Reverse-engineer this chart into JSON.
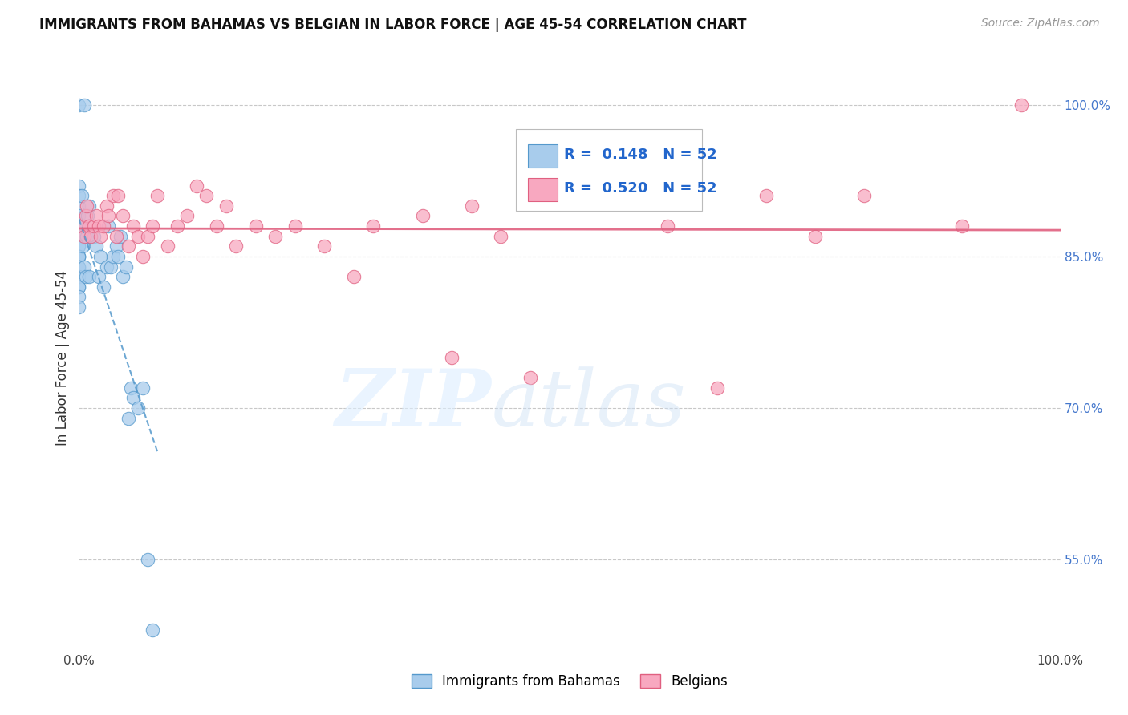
{
  "title": "IMMIGRANTS FROM BAHAMAS VS BELGIAN IN LABOR FORCE | AGE 45-54 CORRELATION CHART",
  "source": "Source: ZipAtlas.com",
  "ylabel": "In Labor Force | Age 45-54",
  "xlim": [
    0.0,
    1.0
  ],
  "ylim": [
    0.46,
    1.04
  ],
  "x_ticks": [
    0.0,
    0.1,
    0.2,
    0.3,
    0.4,
    0.5,
    0.6,
    0.7,
    0.8,
    0.9,
    1.0
  ],
  "x_tick_labels": [
    "0.0%",
    "",
    "",
    "",
    "",
    "",
    "",
    "",
    "",
    "",
    "100.0%"
  ],
  "y_tick_labels": [
    "55.0%",
    "70.0%",
    "85.0%",
    "100.0%"
  ],
  "y_ticks": [
    0.55,
    0.7,
    0.85,
    1.0
  ],
  "grid_color": "#c8c8c8",
  "background_color": "#ffffff",
  "bahamas_color": "#a8ccec",
  "belgian_color": "#f8a8c0",
  "bahamas_edge_color": "#5599cc",
  "belgian_edge_color": "#e06080",
  "r_bahamas": 0.148,
  "r_belgian": 0.52,
  "n_bahamas": 52,
  "n_belgian": 52,
  "legend_label_bahamas": "Immigrants from Bahamas",
  "legend_label_belgian": "Belgians",
  "bahamas_x": [
    0.0,
    0.0,
    0.0,
    0.0,
    0.0,
    0.0,
    0.0,
    0.0,
    0.0,
    0.0,
    0.0,
    0.0,
    0.0,
    0.0,
    0.0,
    0.0,
    0.0,
    0.0,
    0.0,
    0.0,
    0.003,
    0.003,
    0.004,
    0.005,
    0.005,
    0.007,
    0.008,
    0.009,
    0.01,
    0.01,
    0.012,
    0.015,
    0.018,
    0.02,
    0.022,
    0.025,
    0.028,
    0.03,
    0.032,
    0.035,
    0.038,
    0.04,
    0.042,
    0.045,
    0.048,
    0.05,
    0.053,
    0.055,
    0.06,
    0.065,
    0.07,
    0.075
  ],
  "bahamas_y": [
    0.92,
    0.91,
    0.9,
    0.89,
    0.88,
    0.87,
    0.87,
    0.86,
    0.86,
    0.85,
    0.85,
    0.85,
    0.84,
    0.84,
    0.83,
    0.82,
    0.82,
    0.81,
    0.8,
    1.0,
    0.88,
    0.91,
    0.86,
    0.84,
    1.0,
    0.83,
    0.87,
    0.89,
    0.83,
    0.9,
    0.87,
    0.87,
    0.86,
    0.83,
    0.85,
    0.82,
    0.84,
    0.88,
    0.84,
    0.85,
    0.86,
    0.85,
    0.87,
    0.83,
    0.84,
    0.69,
    0.72,
    0.71,
    0.7,
    0.72,
    0.55,
    0.48
  ],
  "belgian_x": [
    0.003,
    0.005,
    0.007,
    0.008,
    0.01,
    0.012,
    0.015,
    0.018,
    0.02,
    0.022,
    0.025,
    0.028,
    0.03,
    0.035,
    0.038,
    0.04,
    0.045,
    0.05,
    0.055,
    0.06,
    0.065,
    0.07,
    0.075,
    0.08,
    0.09,
    0.1,
    0.11,
    0.12,
    0.13,
    0.14,
    0.15,
    0.16,
    0.18,
    0.2,
    0.22,
    0.25,
    0.28,
    0.3,
    0.35,
    0.38,
    0.4,
    0.43,
    0.46,
    0.5,
    0.55,
    0.6,
    0.65,
    0.7,
    0.75,
    0.8,
    0.9,
    0.96
  ],
  "belgian_y": [
    0.88,
    0.87,
    0.89,
    0.9,
    0.88,
    0.87,
    0.88,
    0.89,
    0.88,
    0.87,
    0.88,
    0.9,
    0.89,
    0.91,
    0.87,
    0.91,
    0.89,
    0.86,
    0.88,
    0.87,
    0.85,
    0.87,
    0.88,
    0.91,
    0.86,
    0.88,
    0.89,
    0.92,
    0.91,
    0.88,
    0.9,
    0.86,
    0.88,
    0.87,
    0.88,
    0.86,
    0.83,
    0.88,
    0.89,
    0.75,
    0.9,
    0.87,
    0.73,
    0.91,
    0.92,
    0.88,
    0.72,
    0.91,
    0.87,
    0.91,
    0.88,
    1.0
  ]
}
